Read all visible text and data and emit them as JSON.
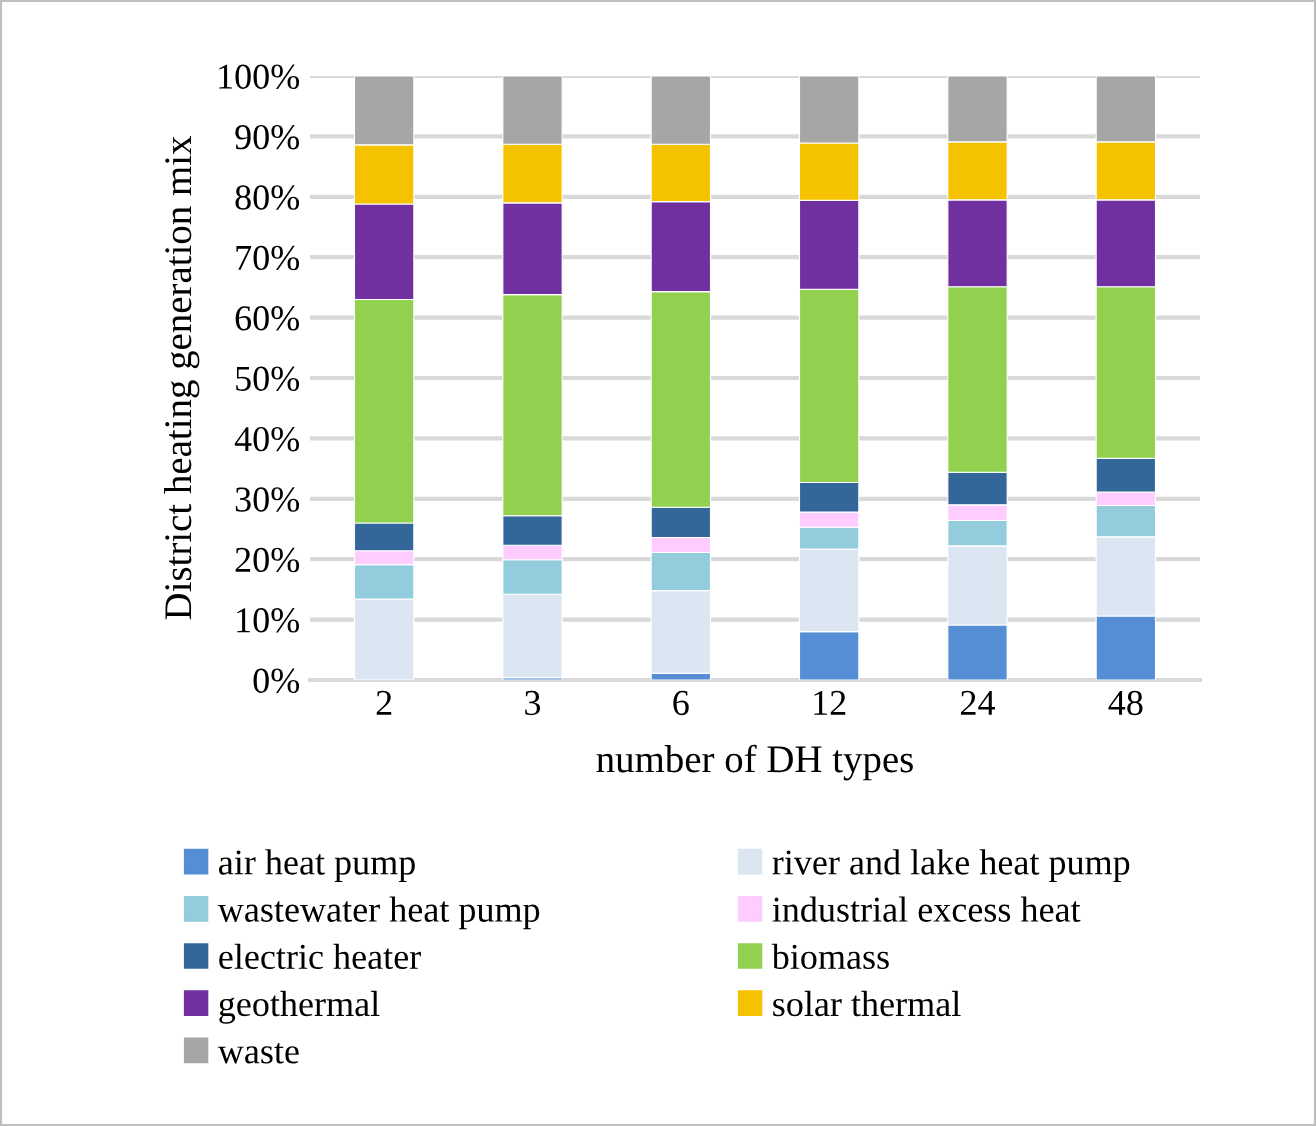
{
  "chart_data": {
    "type": "bar",
    "stacked": true,
    "xlabel": "number of DH types",
    "ylabel": "District heating generation mix",
    "categories": [
      "2",
      "3",
      "6",
      "12",
      "24",
      "48"
    ],
    "series": [
      {
        "name": "air heat pump",
        "color": "#558ed5",
        "values": [
          0,
          0.4,
          1.1,
          8.0,
          9.1,
          10.6
        ]
      },
      {
        "name": "river and lake heat pump",
        "color": "#dce6f2",
        "values": [
          13.4,
          13.8,
          13.7,
          13.7,
          13.1,
          13.1
        ]
      },
      {
        "name": "wastewater heat pump",
        "color": "#93cddd",
        "values": [
          5.7,
          5.7,
          6.3,
          3.6,
          4.2,
          5.2
        ]
      },
      {
        "name": "industrial excess heat",
        "color": "#ffccff",
        "values": [
          2.3,
          2.4,
          2.5,
          2.5,
          2.6,
          2.2
        ]
      },
      {
        "name": "electric heater",
        "color": "#336699",
        "values": [
          4.6,
          4.9,
          5.0,
          4.9,
          5.4,
          5.6
        ]
      },
      {
        "name": "biomass",
        "color": "#92d050",
        "values": [
          37.0,
          36.6,
          35.7,
          32.0,
          30.7,
          28.4
        ]
      },
      {
        "name": "geothermal",
        "color": "#7030a0",
        "values": [
          15.8,
          15.2,
          14.9,
          14.7,
          14.4,
          14.4
        ]
      },
      {
        "name": "solar thermal",
        "color": "#f5c200",
        "values": [
          9.8,
          9.7,
          9.5,
          9.5,
          9.6,
          9.6
        ]
      },
      {
        "name": "waste",
        "color": "#a6a6a6",
        "values": [
          11.4,
          11.3,
          11.3,
          11.1,
          10.9,
          10.9
        ]
      }
    ],
    "ylim": [
      0,
      100
    ],
    "yticks": [
      {
        "value": 0,
        "label": "0%"
      },
      {
        "value": 10,
        "label": "10%"
      },
      {
        "value": 20,
        "label": "20%"
      },
      {
        "value": 30,
        "label": "30%"
      },
      {
        "value": 40,
        "label": "40%"
      },
      {
        "value": 50,
        "label": "50%"
      },
      {
        "value": 60,
        "label": "60%"
      },
      {
        "value": 70,
        "label": "70%"
      },
      {
        "value": 80,
        "label": "80%"
      },
      {
        "value": 90,
        "label": "90%"
      },
      {
        "value": 100,
        "label": "100%"
      }
    ],
    "grid": "y",
    "legend": "bottom"
  }
}
